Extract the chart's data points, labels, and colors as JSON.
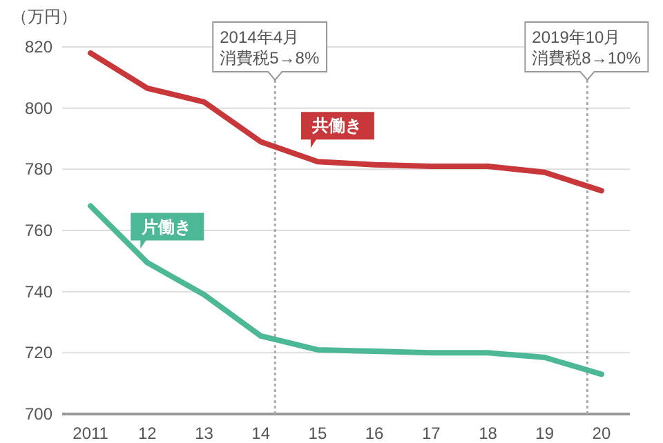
{
  "chart_data": {
    "type": "line",
    "ylabel": "（万円）",
    "x": [
      2011,
      2012,
      2013,
      2014,
      2015,
      2016,
      2017,
      2018,
      2019,
      2020
    ],
    "series": [
      {
        "name": "共働き",
        "color": "#c8383a",
        "values": [
          818,
          806.5,
          802,
          789,
          782.5,
          781.5,
          781,
          781,
          779,
          773
        ]
      },
      {
        "name": "片働き",
        "color": "#4cb896",
        "values": [
          768,
          749.5,
          739,
          725.5,
          721,
          720.5,
          720,
          720,
          718.5,
          713
        ]
      }
    ],
    "xlim": [
      2010.5,
      2020.5
    ],
    "xticks": [
      {
        "value": 2011,
        "label": "2011"
      },
      {
        "value": 2012,
        "label": "12"
      },
      {
        "value": 2013,
        "label": "13"
      },
      {
        "value": 2014,
        "label": "14"
      },
      {
        "value": 2015,
        "label": "15"
      },
      {
        "value": 2016,
        "label": "16"
      },
      {
        "value": 2017,
        "label": "17"
      },
      {
        "value": 2018,
        "label": "18"
      },
      {
        "value": 2019,
        "label": "19"
      },
      {
        "value": 2020,
        "label": "20"
      }
    ],
    "ylim": [
      700,
      820
    ],
    "yticks": [
      700,
      720,
      740,
      760,
      780,
      800,
      820
    ],
    "grid": "y",
    "legend": false,
    "marker": "none",
    "line_style": "solid",
    "ref_lines": [
      {
        "axis": "x",
        "value": 2014.25,
        "label": "2014年4月",
        "line_style": "dotted"
      },
      {
        "axis": "x",
        "value": 2019.75,
        "label": "2019年10月",
        "line_style": "dotted"
      }
    ],
    "annotations": [
      "消費税5→8%",
      "消費税8→10%"
    ]
  }
}
